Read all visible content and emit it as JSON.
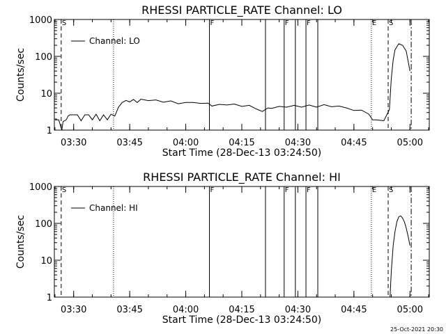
{
  "chart_data": [
    {
      "type": "line",
      "title": "RHESSI PARTICLE_RATE Channel: LO",
      "xlabel": "Start Time (28-Dec-13 03:24:50)",
      "ylabel": "Counts/sec",
      "y_scale": "log",
      "xlim": [
        "03:24:50",
        "05:05:10"
      ],
      "ylim": [
        1,
        1000
      ],
      "x_ticks": [
        "03:30",
        "03:45",
        "04:00",
        "04:15",
        "04:30",
        "04:45",
        "05:00"
      ],
      "y_ticks": [
        "1",
        "10",
        "100",
        "1000"
      ],
      "legend": {
        "label": "Channel: LO",
        "position": "top-left"
      },
      "event_lines": [
        {
          "time": "03:26:40",
          "style": "dashed",
          "letter": "S"
        },
        {
          "time": "03:40:40",
          "style": "dotted",
          "letter": ""
        },
        {
          "time": "04:06:20",
          "style": "solid",
          "letter": "F"
        },
        {
          "time": "04:21:20",
          "style": "solid",
          "letter": ""
        },
        {
          "time": "04:26:20",
          "style": "solid",
          "letter": "F"
        },
        {
          "time": "04:29:20",
          "style": "solid",
          "letter": ""
        },
        {
          "time": "04:32:10",
          "style": "solid",
          "letter": "F"
        },
        {
          "time": "04:35:20",
          "style": "solid",
          "letter": ""
        },
        {
          "time": "04:49:40",
          "style": "dotted",
          "letter": "E"
        },
        {
          "time": "04:54:10",
          "style": "dashed",
          "letter": "S"
        },
        {
          "time": "05:00:20",
          "style": "dashdot",
          "letter": ""
        }
      ],
      "series": [
        {
          "x": [
            "03:25:00",
            "03:26:00",
            "03:26:30",
            "03:26:50",
            "03:27:10",
            "03:28:00",
            "03:28:30",
            "03:29:00",
            "03:30:00",
            "03:31:00",
            "03:32:00",
            "03:33:00",
            "03:34:00",
            "03:35:00",
            "03:36:00",
            "03:37:00",
            "03:38:00",
            "03:39:00",
            "03:40:00",
            "03:41:00",
            "03:42:00",
            "03:43:00",
            "03:44:00",
            "03:45:00",
            "03:46:00",
            "03:47:00",
            "03:48:00",
            "03:50:00",
            "03:52:00",
            "03:54:00",
            "03:56:00",
            "03:58:00",
            "04:00:00",
            "04:02:00",
            "04:04:00",
            "04:06:00",
            "04:07:00",
            "04:09:00",
            "04:11:00",
            "04:13:00",
            "04:15:00",
            "04:17:00",
            "04:19:00",
            "04:20:30",
            "04:22:00",
            "04:23:00",
            "04:25:00",
            "04:27:00",
            "04:29:00",
            "04:31:00",
            "04:33:00",
            "04:35:00",
            "04:37:00",
            "04:39:00",
            "04:41:00",
            "04:43:00",
            "04:45:00",
            "04:47:00",
            "04:49:00",
            "04:50:00",
            "04:51:00",
            "04:53:00",
            "04:54:30",
            "04:55:00",
            "04:55:30",
            "04:56:00",
            "04:57:00",
            "04:58:00",
            "04:59:00",
            "05:00:00"
          ],
          "values": [
            1.9,
            1.9,
            1.3,
            1.0,
            1.7,
            1.9,
            2.4,
            2.6,
            2.6,
            2.6,
            1.8,
            2.6,
            2.6,
            1.9,
            2.7,
            1.8,
            2.6,
            1.9,
            2.7,
            2.4,
            4.2,
            5.6,
            6.4,
            5.8,
            6.8,
            5.6,
            6.9,
            6.3,
            6.6,
            5.7,
            6.2,
            5.2,
            5.6,
            5.6,
            5.3,
            5.4,
            4.5,
            5.0,
            4.8,
            5.1,
            4.4,
            4.7,
            3.7,
            3.2,
            4.0,
            3.9,
            4.4,
            4.2,
            4.7,
            4.2,
            4.8,
            4.2,
            4.9,
            4.3,
            4.5,
            4.0,
            3.4,
            3.5,
            2.7,
            1.9,
            1.9,
            1.8,
            3.6,
            25,
            80,
            150,
            220,
            200,
            140,
            40
          ]
        }
      ]
    },
    {
      "type": "line",
      "title": "RHESSI PARTICLE_RATE Channel: HI",
      "xlabel": "Start Time (28-Dec-13 03:24:50)",
      "ylabel": "Counts/sec",
      "y_scale": "log",
      "xlim": [
        "03:24:50",
        "05:05:10"
      ],
      "ylim": [
        1,
        1000
      ],
      "x_ticks": [
        "03:30",
        "03:45",
        "04:00",
        "04:15",
        "04:30",
        "04:45",
        "05:00"
      ],
      "y_ticks": [
        "1",
        "10",
        "100",
        "1000"
      ],
      "legend": {
        "label": "Channel: HI",
        "position": "top-left"
      },
      "event_lines": [
        {
          "time": "03:26:40",
          "style": "dashed",
          "letter": "S"
        },
        {
          "time": "03:40:40",
          "style": "dotted",
          "letter": ""
        },
        {
          "time": "04:06:20",
          "style": "solid",
          "letter": "F"
        },
        {
          "time": "04:21:20",
          "style": "solid",
          "letter": ""
        },
        {
          "time": "04:26:20",
          "style": "solid",
          "letter": "F"
        },
        {
          "time": "04:29:20",
          "style": "solid",
          "letter": ""
        },
        {
          "time": "04:32:10",
          "style": "solid",
          "letter": "F"
        },
        {
          "time": "04:35:20",
          "style": "solid",
          "letter": ""
        },
        {
          "time": "04:49:40",
          "style": "dotted",
          "letter": "E"
        },
        {
          "time": "04:54:10",
          "style": "dashed",
          "letter": "S"
        },
        {
          "time": "05:00:20",
          "style": "dashdot",
          "letter": ""
        }
      ],
      "series": [
        {
          "x": [
            "04:54:40",
            "04:55:00",
            "04:55:30",
            "04:56:00",
            "04:56:30",
            "04:57:00",
            "04:57:30",
            "04:58:00",
            "04:58:30",
            "04:59:00",
            "04:59:30",
            "05:00:00"
          ],
          "values": [
            1.0,
            5,
            25,
            60,
            110,
            150,
            160,
            140,
            110,
            75,
            45,
            25
          ]
        }
      ]
    }
  ],
  "footer": {
    "timestamp": "25-Oct-2021 20:30"
  }
}
